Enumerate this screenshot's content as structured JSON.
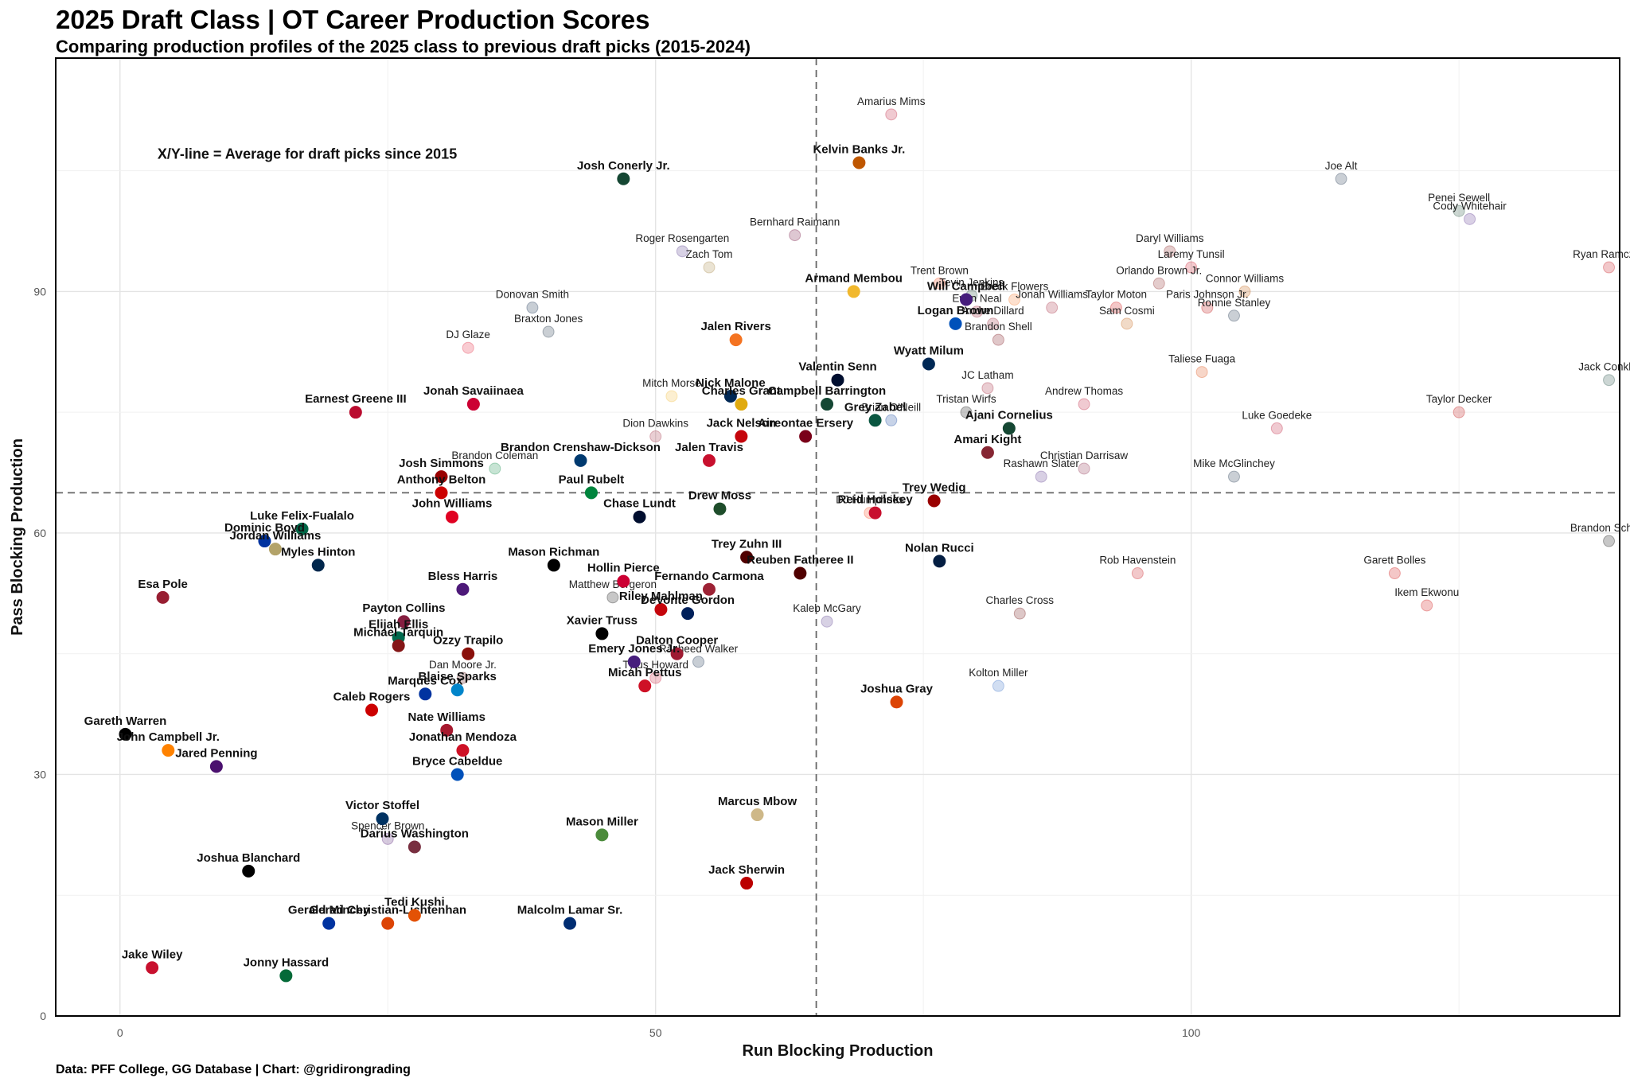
{
  "header": {
    "title": "2025 Draft Class | OT Career Production Scores",
    "subtitle": "Comparing production profiles of the 2025 class to previous draft picks (2015-2024)"
  },
  "caption": "Data: PFF College, GG Database | Chart: @gridirongrading",
  "chart_data": {
    "type": "scatter",
    "title": "2025 Draft Class | OT Career Production Scores",
    "subtitle": "Comparing production profiles of the 2025 class to previous draft picks (2015-2024)",
    "xlabel": "Run Blocking Production",
    "ylabel": "Pass Blocking Production",
    "xlim": [
      -6,
      140
    ],
    "ylim": [
      0,
      119
    ],
    "x_ticks": [
      0,
      50,
      100
    ],
    "y_ticks": [
      0,
      30,
      60,
      90
    ],
    "grid": true,
    "reference_lines": {
      "x": 65,
      "y": 65
    },
    "annotation": "X/Y-line = Average for draft picks since 2015",
    "series": [
      {
        "class": "2025",
        "points": [
          {
            "name": "Josh Conerly Jr.",
            "x": 47,
            "y": 104,
            "color": "#154733"
          },
          {
            "name": "Kelvin Banks Jr.",
            "x": 69,
            "y": 106,
            "color": "#bf5700"
          },
          {
            "name": "Armand Membou",
            "x": 68.5,
            "y": 90,
            "color": "#f1b82d"
          },
          {
            "name": "Will Campbell",
            "x": 79,
            "y": 89,
            "color": "#461d7c"
          },
          {
            "name": "Logan Brown",
            "x": 78,
            "y": 86,
            "color": "#0051ba"
          },
          {
            "name": "Jalen Rivers",
            "x": 57.5,
            "y": 84,
            "color": "#f47321"
          },
          {
            "name": "Wyatt Milum",
            "x": 75.5,
            "y": 81,
            "color": "#002855"
          },
          {
            "name": "Valentin Senn",
            "x": 67,
            "y": 79,
            "color": "#000e2f"
          },
          {
            "name": "Campbell Barrington",
            "x": 66,
            "y": 76,
            "color": "#154734"
          },
          {
            "name": "Nick Malone",
            "x": 57,
            "y": 77,
            "color": "#002855"
          },
          {
            "name": "Charles Grant",
            "x": 58,
            "y": 76,
            "color": "#e0aa0f"
          },
          {
            "name": "Earnest Greene III",
            "x": 22,
            "y": 75,
            "color": "#ba0c2f"
          },
          {
            "name": "Jonah Savaiinaea",
            "x": 33,
            "y": 76,
            "color": "#cc0033"
          },
          {
            "name": "Ajani Cornelius",
            "x": 83,
            "y": 73,
            "color": "#154733"
          },
          {
            "name": "Grey Zabel",
            "x": 70.5,
            "y": 74,
            "color": "#0a5640"
          },
          {
            "name": "Jack Nelson",
            "x": 58,
            "y": 72,
            "color": "#c5050c"
          },
          {
            "name": "Aireontae Ersery",
            "x": 64,
            "y": 72,
            "color": "#7a0019"
          },
          {
            "name": "Amari Kight",
            "x": 81,
            "y": 70,
            "color": "#862633"
          },
          {
            "name": "Jalen Travis",
            "x": 55,
            "y": 69,
            "color": "#c8102e"
          },
          {
            "name": "Brandon Crenshaw-Dickson",
            "x": 43,
            "y": 69,
            "color": "#003a70"
          },
          {
            "name": "Josh Simmons",
            "x": 30,
            "y": 67,
            "color": "#990000"
          },
          {
            "name": "Paul Rubelt",
            "x": 44,
            "y": 65,
            "color": "#00843d"
          },
          {
            "name": "Anthony Belton",
            "x": 30,
            "y": 65,
            "color": "#cc0000"
          },
          {
            "name": "Trey Wedig",
            "x": 76,
            "y": 64,
            "color": "#990000"
          },
          {
            "name": "Reid Holskey",
            "x": 70.5,
            "y": 62.5,
            "color": "#c8102e"
          },
          {
            "name": "Drew Moss",
            "x": 56,
            "y": 63,
            "color": "#1e4d2b"
          },
          {
            "name": "Chase Lundt",
            "x": 48.5,
            "y": 62,
            "color": "#000e2f"
          },
          {
            "name": "John Williams",
            "x": 31,
            "y": 62,
            "color": "#e00122"
          },
          {
            "name": "Luke Felix-Fualalo",
            "x": 17,
            "y": 60.5,
            "color": "#006747"
          },
          {
            "name": "Dominic Boyd",
            "x": 13.5,
            "y": 59,
            "color": "#0033a0"
          },
          {
            "name": "Jordan Williams",
            "x": 14.5,
            "y": 58,
            "color": "#b3a369"
          },
          {
            "name": "Myles Hinton",
            "x": 18.5,
            "y": 56,
            "color": "#00274c"
          },
          {
            "name": "Trey Zuhn III",
            "x": 58.5,
            "y": 57,
            "color": "#500000"
          },
          {
            "name": "Nolan Rucci",
            "x": 76.5,
            "y": 56.5,
            "color": "#041e42"
          },
          {
            "name": "Mason Richman",
            "x": 40.5,
            "y": 56,
            "color": "#000000"
          },
          {
            "name": "Reuben Fatheree II",
            "x": 63.5,
            "y": 55,
            "color": "#500000"
          },
          {
            "name": "Hollin Pierce",
            "x": 47,
            "y": 54,
            "color": "#cc0033"
          },
          {
            "name": "Bless Harris",
            "x": 32,
            "y": 53,
            "color": "#4d1979"
          },
          {
            "name": "Fernando Carmona",
            "x": 55,
            "y": 53,
            "color": "#9d2235"
          },
          {
            "name": "Esa Pole",
            "x": 4,
            "y": 52,
            "color": "#981e32"
          },
          {
            "name": "Riley Mahlman",
            "x": 50.5,
            "y": 50.5,
            "color": "#c5050c"
          },
          {
            "name": "DeVonte Gordon",
            "x": 53,
            "y": 50,
            "color": "#00205b"
          },
          {
            "name": "Payton Collins",
            "x": 26.5,
            "y": 49,
            "color": "#861f41"
          },
          {
            "name": "Xavier Truss",
            "x": 45,
            "y": 47.5,
            "color": "#000000"
          },
          {
            "name": "Elijah Ellis",
            "x": 26,
            "y": 47,
            "color": "#006a4e"
          },
          {
            "name": "Michael Tarquin",
            "x": 26,
            "y": 46,
            "color": "#841617"
          },
          {
            "name": "Dalton Cooper",
            "x": 52,
            "y": 45,
            "color": "#9e1b32"
          },
          {
            "name": "Emery Jones Jr.",
            "x": 48,
            "y": 44,
            "color": "#461d7c"
          },
          {
            "name": "Ozzy Trapilo",
            "x": 32.5,
            "y": 45,
            "color": "#8a100b"
          },
          {
            "name": "Micah Pettus",
            "x": 49,
            "y": 41,
            "color": "#ce1126"
          },
          {
            "name": "Marques Cox",
            "x": 28.5,
            "y": 40,
            "color": "#0033a0"
          },
          {
            "name": "Blaise Sparks",
            "x": 31.5,
            "y": 40.5,
            "color": "#0085ca"
          },
          {
            "name": "Caleb Rogers",
            "x": 23.5,
            "y": 38,
            "color": "#cc0000"
          },
          {
            "name": "Joshua Gray",
            "x": 72.5,
            "y": 39,
            "color": "#dc4405"
          },
          {
            "name": "Gareth Warren",
            "x": 0.5,
            "y": 35,
            "color": "#000000"
          },
          {
            "name": "Nate Williams",
            "x": 30.5,
            "y": 35.5,
            "color": "#a6192e"
          },
          {
            "name": "John Campbell Jr.",
            "x": 4.5,
            "y": 33,
            "color": "#ff8200"
          },
          {
            "name": "Jonathan Mendoza",
            "x": 32,
            "y": 33,
            "color": "#ce1126"
          },
          {
            "name": "Jared Penning",
            "x": 9,
            "y": 31,
            "color": "#4b116f"
          },
          {
            "name": "Bryce Cabeldue",
            "x": 31.5,
            "y": 30,
            "color": "#0051ba"
          },
          {
            "name": "Marcus Mbow",
            "x": 59.5,
            "y": 25,
            "color": "#ceb888"
          },
          {
            "name": "Victor Stoffel",
            "x": 24.5,
            "y": 24.5,
            "color": "#003262"
          },
          {
            "name": "Darius Washington",
            "x": 27.5,
            "y": 21,
            "color": "#782f40"
          },
          {
            "name": "Mason Miller",
            "x": 45,
            "y": 22.5,
            "color": "#4b8b3b"
          },
          {
            "name": "Joshua Blanchard",
            "x": 12,
            "y": 18,
            "color": "#000000"
          },
          {
            "name": "Jack Sherwin",
            "x": 58.5,
            "y": 16.5,
            "color": "#bb0000"
          },
          {
            "name": "Gerad Christian-Lichtenhan",
            "x": 25,
            "y": 11.5,
            "color": "#dc4405"
          },
          {
            "name": "Tedi Kushi",
            "x": 27.5,
            "y": 12.5,
            "color": "#e35205"
          },
          {
            "name": "Malcolm Lamar Sr.",
            "x": 42,
            "y": 11.5,
            "color": "#002d72"
          },
          {
            "name": "Gerald Mincey",
            "x": 19.5,
            "y": 11.5,
            "color": "#0033a0"
          },
          {
            "name": "Jake Wiley",
            "x": 3,
            "y": 6,
            "color": "#c8102e"
          },
          {
            "name": "Jonny Hassard",
            "x": 15.5,
            "y": 5,
            "color": "#046a38"
          }
        ]
      },
      {
        "class": "2015-2024",
        "points": [
          {
            "name": "Amarius Mims",
            "x": 72,
            "y": 112,
            "color": "#ba0c2f"
          },
          {
            "name": "Bernhard Raimann",
            "x": 63,
            "y": 97,
            "color": "#6a0032"
          },
          {
            "name": "Roger Rosengarten",
            "x": 52.5,
            "y": 95,
            "color": "#4b2e83"
          },
          {
            "name": "Zach Tom",
            "x": 55,
            "y": 93,
            "color": "#9e7e38"
          },
          {
            "name": "Trent Brown",
            "x": 76.5,
            "y": 91,
            "color": "#fa4616"
          },
          {
            "name": "Tevin Jenkins",
            "x": 79.5,
            "y": 89.5,
            "color": "#154734"
          },
          {
            "name": "Ereck Flowers",
            "x": 83.5,
            "y": 89,
            "color": "#f47321"
          },
          {
            "name": "Evan Neal",
            "x": 80,
            "y": 87.5,
            "color": "#9e1b32"
          },
          {
            "name": "Jonah Williams",
            "x": 87,
            "y": 88,
            "color": "#9e1b32"
          },
          {
            "name": "Andre Dillard",
            "x": 81.5,
            "y": 86,
            "color": "#981e32"
          },
          {
            "name": "Brandon Shell",
            "x": 82,
            "y": 84,
            "color": "#73000a"
          },
          {
            "name": "Donovan Smith",
            "x": 38.5,
            "y": 88,
            "color": "#041e42"
          },
          {
            "name": "Braxton Jones",
            "x": 40,
            "y": 85,
            "color": "#0f2439"
          },
          {
            "name": "DJ Glaze",
            "x": 32.5,
            "y": 83,
            "color": "#e21833"
          },
          {
            "name": "Daryl Williams",
            "x": 98,
            "y": 95,
            "color": "#841617"
          },
          {
            "name": "Laremy Tunsil",
            "x": 100,
            "y": 93,
            "color": "#ce1126"
          },
          {
            "name": "Orlando Brown Jr.",
            "x": 97,
            "y": 91,
            "color": "#841617"
          },
          {
            "name": "Connor Williams",
            "x": 105,
            "y": 90,
            "color": "#bf5700"
          },
          {
            "name": "Paris Johnson Jr.",
            "x": 101.5,
            "y": 88,
            "color": "#bb0000"
          },
          {
            "name": "Taylor Moton",
            "x": 93,
            "y": 88,
            "color": "#cc0000"
          },
          {
            "name": "Ronnie Stanley",
            "x": 104,
            "y": 87,
            "color": "#0c2340"
          },
          {
            "name": "Sam Cosmi",
            "x": 94,
            "y": 86,
            "color": "#bf5700"
          },
          {
            "name": "Joe Alt",
            "x": 114,
            "y": 104,
            "color": "#0c2340"
          },
          {
            "name": "Penei Sewell",
            "x": 125,
            "y": 100,
            "color": "#154733"
          },
          {
            "name": "Cody Whitehair",
            "x": 126,
            "y": 99,
            "color": "#512888"
          },
          {
            "name": "Ryan Ramczyk",
            "x": 139,
            "y": 93,
            "color": "#c5050c"
          },
          {
            "name": "Taliese Fuaga",
            "x": 101,
            "y": 80,
            "color": "#dc4405"
          },
          {
            "name": "Jack Conklin",
            "x": 139,
            "y": 79,
            "color": "#18453b"
          },
          {
            "name": "JC Latham",
            "x": 81,
            "y": 78,
            "color": "#9e1b32"
          },
          {
            "name": "Andrew Thomas",
            "x": 90,
            "y": 76,
            "color": "#ba0c2f"
          },
          {
            "name": "Tristan Wirfs",
            "x": 79,
            "y": 75,
            "color": "#000000"
          },
          {
            "name": "Brian O'Neill",
            "x": 72,
            "y": 74,
            "color": "#003594"
          },
          {
            "name": "Mitch Morse",
            "x": 51.5,
            "y": 77,
            "color": "#f1b82d"
          },
          {
            "name": "Dion Dawkins",
            "x": 50,
            "y": 72,
            "color": "#9d2235"
          },
          {
            "name": "Taylor Decker",
            "x": 125,
            "y": 75,
            "color": "#bb0000"
          },
          {
            "name": "Luke Goedeke",
            "x": 108,
            "y": 73,
            "color": "#ba0c2f"
          },
          {
            "name": "Christian Darrisaw",
            "x": 90,
            "y": 68,
            "color": "#861f41"
          },
          {
            "name": "Rashawn Slater",
            "x": 86,
            "y": 67,
            "color": "#4e2a84"
          },
          {
            "name": "Mike McGlinchey",
            "x": 104,
            "y": 67,
            "color": "#0c2340"
          },
          {
            "name": "Brandon Coleman",
            "x": 35,
            "y": 68,
            "color": "#00843d"
          },
          {
            "name": "DJ Humphries",
            "x": 70,
            "y": 62.5,
            "color": "#fa4616"
          },
          {
            "name": "Brandon Scherff",
            "x": 139,
            "y": 59,
            "color": "#000000"
          },
          {
            "name": "Rob Havenstein",
            "x": 95,
            "y": 55,
            "color": "#c5050c"
          },
          {
            "name": "Garett Bolles",
            "x": 119,
            "y": 55,
            "color": "#cc0000"
          },
          {
            "name": "Ikem Ekwonu",
            "x": 122,
            "y": 51,
            "color": "#cc0000"
          },
          {
            "name": "Charles Cross",
            "x": 84,
            "y": 50,
            "color": "#660000"
          },
          {
            "name": "Matthew Bergeron",
            "x": 46,
            "y": 52,
            "color": "#000000"
          },
          {
            "name": "Kaleb McGary",
            "x": 66,
            "y": 49,
            "color": "#4b2e83"
          },
          {
            "name": "Rasheed Walker",
            "x": 54,
            "y": 44,
            "color": "#041e42"
          },
          {
            "name": "Dan Moore Jr.",
            "x": 32,
            "y": 42,
            "color": "#500000"
          },
          {
            "name": "Tytus Howard",
            "x": 50,
            "y": 42,
            "color": "#c8102e"
          },
          {
            "name": "Kolton Miller",
            "x": 82,
            "y": 41,
            "color": "#2d68c4"
          },
          {
            "name": "Spencer Brown",
            "x": 25,
            "y": 22,
            "color": "#4b116f"
          }
        ]
      }
    ]
  }
}
